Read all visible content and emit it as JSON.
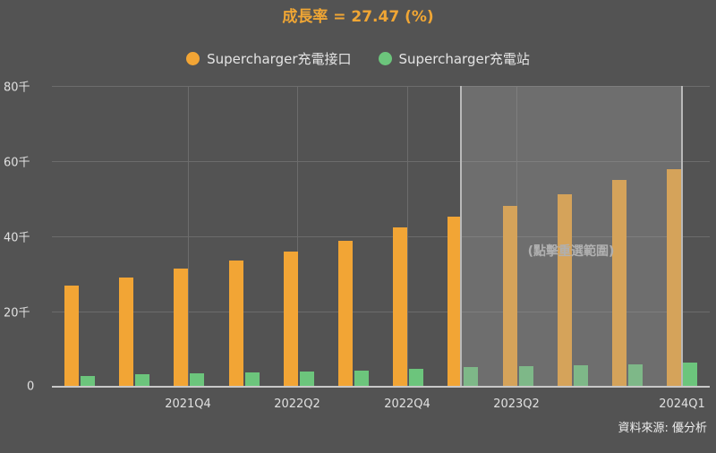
{
  "title": "成長率 = 27.47 (%)",
  "legend": [
    {
      "label": "Supercharger充電接口",
      "color": "#f2a535"
    },
    {
      "label": "Supercharger充電站",
      "color": "#6cc57c"
    }
  ],
  "y_axis": {
    "ticks": [
      "80千",
      "60千",
      "40千",
      "20千",
      "0"
    ]
  },
  "x_axis": {
    "ticks": [
      "2021Q4",
      "2022Q2",
      "2022Q4",
      "2023Q2",
      "2024Q1"
    ]
  },
  "selection": {
    "label": "(點擊重選範圍)"
  },
  "source": "資料來源: 優分析",
  "chart_data": {
    "type": "bar",
    "title": "成長率 = 27.47 (%)",
    "categories": [
      "2021Q2",
      "2021Q3",
      "2021Q4",
      "2022Q1",
      "2022Q2",
      "2022Q3",
      "2022Q4",
      "2023Q1",
      "2023Q2",
      "2023Q3",
      "2023Q4",
      "2024Q1"
    ],
    "series": [
      {
        "name": "Supercharger充電接口",
        "color": "#f2a535",
        "values": [
          26.7,
          28.8,
          31.2,
          33.3,
          35.7,
          38.6,
          42.1,
          45.0,
          47.9,
          51.0,
          54.8,
          57.6
        ]
      },
      {
        "name": "Supercharger充電站",
        "color": "#6cc57c",
        "values": [
          2.6,
          3.1,
          3.3,
          3.6,
          3.8,
          4.1,
          4.5,
          5.0,
          5.2,
          5.5,
          5.7,
          6.2
        ]
      }
    ],
    "units": "千",
    "xlabel": "",
    "ylabel": "",
    "ylim": [
      0,
      80
    ],
    "yticks": [
      0,
      20,
      40,
      60,
      80
    ],
    "xtick_labels_shown": [
      "2021Q4",
      "2022Q2",
      "2022Q4",
      "2023Q2",
      "2024Q1"
    ],
    "grid": true,
    "legend_position": "top",
    "selected_range": [
      "2023Q1",
      "2024Q1"
    ],
    "annotation": "(點擊重選範圍)",
    "source": "資料來源: 優分析"
  }
}
